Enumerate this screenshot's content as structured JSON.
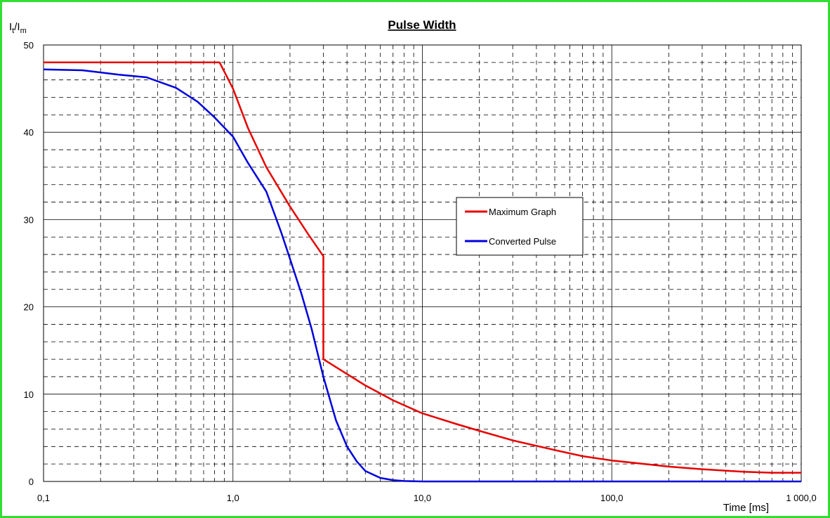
{
  "chart_data": {
    "type": "line",
    "title": "Pulse Width",
    "xlabel": "Time [ms]",
    "ylabel": {
      "main": "I",
      "sub1": "t",
      "slash": "/I",
      "sub2": "m"
    },
    "x_scale": "log",
    "xlim": [
      0.1,
      1000
    ],
    "ylim": [
      0,
      50
    ],
    "x_ticks": [
      0.1,
      1,
      10,
      100,
      1000
    ],
    "x_tick_labels": [
      "0,1",
      "1,0",
      "10,0",
      "100,0",
      "1 000,0"
    ],
    "y_ticks": [
      0,
      10,
      20,
      30,
      40,
      50
    ],
    "y_tick_labels": [
      "0",
      "10",
      "20",
      "30",
      "40",
      "50"
    ],
    "grid": true,
    "legend_position": "center-right",
    "series": [
      {
        "name": "Maximum Graph",
        "color": "#e80000",
        "points": [
          [
            0.1,
            48
          ],
          [
            0.85,
            48
          ],
          [
            1.0,
            45
          ],
          [
            1.2,
            40.5
          ],
          [
            1.5,
            36
          ],
          [
            2.0,
            31.5
          ],
          [
            2.5,
            28.3
          ],
          [
            3.0,
            25.8
          ],
          [
            3.0,
            14
          ],
          [
            4.0,
            12.3
          ],
          [
            5.0,
            11
          ],
          [
            7.0,
            9.3
          ],
          [
            10,
            7.8
          ],
          [
            15,
            6.6
          ],
          [
            20,
            5.8
          ],
          [
            30,
            4.7
          ],
          [
            50,
            3.6
          ],
          [
            70,
            2.9
          ],
          [
            100,
            2.4
          ],
          [
            150,
            2.0
          ],
          [
            200,
            1.7
          ],
          [
            300,
            1.4
          ],
          [
            500,
            1.1
          ],
          [
            700,
            1.0
          ],
          [
            1000,
            1.0
          ]
        ]
      },
      {
        "name": "Converted Pulse",
        "color": "#0000dd",
        "points": [
          [
            0.1,
            47.2
          ],
          [
            0.16,
            47.1
          ],
          [
            0.25,
            46.6
          ],
          [
            0.35,
            46.3
          ],
          [
            0.5,
            45.1
          ],
          [
            0.65,
            43.5
          ],
          [
            0.8,
            41.7
          ],
          [
            1.0,
            39.5
          ],
          [
            1.2,
            36.5
          ],
          [
            1.5,
            33.2
          ],
          [
            1.8,
            28.5
          ],
          [
            2.0,
            25.5
          ],
          [
            2.3,
            21.5
          ],
          [
            2.6,
            17.5
          ],
          [
            3.0,
            12.0
          ],
          [
            3.5,
            7.0
          ],
          [
            4.0,
            4.0
          ],
          [
            4.5,
            2.3
          ],
          [
            5.0,
            1.2
          ],
          [
            6.0,
            0.4
          ],
          [
            7.0,
            0.15
          ],
          [
            8.0,
            0.05
          ],
          [
            10,
            0
          ],
          [
            100,
            0
          ],
          [
            1000,
            0
          ]
        ]
      }
    ]
  }
}
